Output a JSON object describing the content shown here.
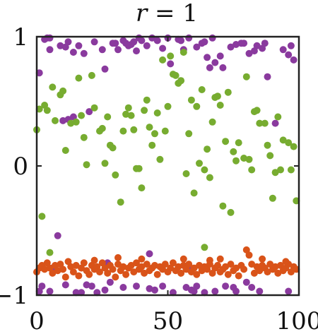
{
  "chart_data": {
    "type": "scatter",
    "title_var": "r",
    "title_rest": " = 1",
    "xlabel": "",
    "ylabel": "",
    "xlim": [
      0,
      100
    ],
    "ylim": [
      -1,
      1
    ],
    "x_ticks": [
      0,
      50,
      100
    ],
    "y_ticks": [
      -1,
      0,
      1
    ],
    "grid": false,
    "legend": "none",
    "series": [
      {
        "color": "#8a3a9e",
        "points": [
          [
            1,
            0.72
          ],
          [
            3,
            0.98
          ],
          [
            4,
            0.99
          ],
          [
            5,
            0.99
          ],
          [
            5,
            0.9
          ],
          [
            9,
            0.93
          ],
          [
            11,
            0.92
          ],
          [
            12,
            0.96
          ],
          [
            14,
            0.88
          ],
          [
            16,
            0.93
          ],
          [
            18,
            0.87
          ],
          [
            22,
            0.96
          ],
          [
            25,
            0.9
          ],
          [
            26,
            0.75
          ],
          [
            29,
            0.95
          ],
          [
            30,
            0.95
          ],
          [
            31,
            0.9
          ],
          [
            33,
            0.97
          ],
          [
            34,
            0.95
          ],
          [
            35,
            0.93
          ],
          [
            36,
            0.94
          ],
          [
            37,
            0.96
          ],
          [
            38,
            0.89
          ],
          [
            39,
            0.99
          ],
          [
            40,
            0.97
          ],
          [
            42,
            0.93
          ],
          [
            44,
            0.99
          ],
          [
            46,
            0.97
          ],
          [
            48,
            0.91
          ],
          [
            50,
            0.99
          ],
          [
            51,
            0.79
          ],
          [
            54,
            0.98
          ],
          [
            55,
            0.97
          ],
          [
            56,
            0.9
          ],
          [
            58,
            0.99
          ],
          [
            61,
            0.92
          ],
          [
            63,
            0.95
          ],
          [
            64,
            0.96
          ],
          [
            65,
            0.84
          ],
          [
            66,
            0.76
          ],
          [
            67,
            0.99
          ],
          [
            68,
            0.8
          ],
          [
            70,
            0.85
          ],
          [
            71,
            0.76
          ],
          [
            74,
            0.92
          ],
          [
            76,
            0.94
          ],
          [
            78,
            0.95
          ],
          [
            79,
            0.95
          ],
          [
            81,
            0.87
          ],
          [
            83,
            0.89
          ],
          [
            84,
            0.93
          ],
          [
            86,
            0.91
          ],
          [
            87,
            0.95
          ],
          [
            88,
            0.69
          ],
          [
            94,
            0.9
          ],
          [
            96,
            0.86
          ],
          [
            97,
            0.93
          ],
          [
            98,
            0.82
          ],
          [
            12,
            0.36
          ],
          [
            20,
            0.42
          ],
          [
            14,
            0.38
          ],
          [
            91,
            0.33
          ],
          [
            10,
            0.35
          ],
          [
            8,
            -0.54
          ],
          [
            43,
            -0.68
          ],
          [
            6,
            -0.79
          ],
          [
            27,
            -0.75
          ],
          [
            58,
            -0.8
          ],
          [
            1,
            -0.97
          ],
          [
            2,
            -0.93
          ],
          [
            5,
            -0.97
          ],
          [
            11,
            -0.92
          ],
          [
            15,
            -0.98
          ],
          [
            17,
            -0.98
          ],
          [
            19,
            -0.92
          ],
          [
            21,
            -0.93
          ],
          [
            23,
            -0.98
          ],
          [
            26,
            -0.96
          ],
          [
            28,
            -0.9
          ],
          [
            33,
            -0.94
          ],
          [
            38,
            -0.93
          ],
          [
            43,
            -0.95
          ],
          [
            45,
            -0.96
          ],
          [
            48,
            -0.93
          ],
          [
            52,
            -0.98
          ],
          [
            57,
            -0.94
          ],
          [
            59,
            -0.96
          ],
          [
            60,
            -0.97
          ],
          [
            61,
            -0.93
          ],
          [
            64,
            -0.98
          ],
          [
            68,
            -0.97
          ],
          [
            72,
            -0.93
          ],
          [
            75,
            -0.94
          ],
          [
            76,
            -0.97
          ],
          [
            80,
            -0.9
          ],
          [
            82,
            -0.94
          ],
          [
            85,
            -0.97
          ],
          [
            96,
            -0.97
          ]
        ]
      },
      {
        "color": "#77ac30",
        "points": [
          [
            0,
            0.28
          ],
          [
            1,
            0.44
          ],
          [
            3,
            0.47
          ],
          [
            4,
            0.43
          ],
          [
            6,
            0.61
          ],
          [
            7,
            0.35
          ],
          [
            9,
            0.55
          ],
          [
            10,
            0.58
          ],
          [
            11,
            0.12
          ],
          [
            13,
            0.33
          ],
          [
            15,
            0.34
          ],
          [
            16,
            0.68
          ],
          [
            17,
            0.39
          ],
          [
            18,
            0.22
          ],
          [
            19,
            0.01
          ],
          [
            21,
            0.7
          ],
          [
            22,
            0.45
          ],
          [
            24,
            0.27
          ],
          [
            25,
            0.29
          ],
          [
            26,
            0.02
          ],
          [
            27,
            0.38
          ],
          [
            28,
            0.16
          ],
          [
            29,
            0.14
          ],
          [
            30,
            -0.07
          ],
          [
            32,
            -0.28
          ],
          [
            33,
            0.27
          ],
          [
            34,
            0.4
          ],
          [
            35,
            0.45
          ],
          [
            36,
            0.39
          ],
          [
            37,
            0.28
          ],
          [
            38,
            -0.02
          ],
          [
            39,
            -0.02
          ],
          [
            40,
            -0.17
          ],
          [
            41,
            0.43
          ],
          [
            42,
            0.51
          ],
          [
            43,
            0.3
          ],
          [
            44,
            0.16
          ],
          [
            45,
            0.25
          ],
          [
            46,
            0.41
          ],
          [
            47,
            0.05
          ],
          [
            48,
            0.82
          ],
          [
            49,
            0.27
          ],
          [
            50,
            0.46
          ],
          [
            51,
            0.85
          ],
          [
            52,
            0.71
          ],
          [
            53,
            0.7
          ],
          [
            54,
            0.64
          ],
          [
            55,
            0.66
          ],
          [
            56,
            0.88
          ],
          [
            57,
            -0.06
          ],
          [
            58,
            0.25
          ],
          [
            59,
            0.51
          ],
          [
            60,
            -0.21
          ],
          [
            61,
            0.46
          ],
          [
            62,
            0.02
          ],
          [
            63,
            0.59
          ],
          [
            64,
            -0.03
          ],
          [
            65,
            0.13
          ],
          [
            66,
            -0.09
          ],
          [
            67,
            0.34
          ],
          [
            68,
            0.53
          ],
          [
            69,
            0.54
          ],
          [
            70,
            0.47
          ],
          [
            71,
            -0.31
          ],
          [
            72,
            0.19
          ],
          [
            73,
            0.57
          ],
          [
            74,
            -0.36
          ],
          [
            75,
            0.11
          ],
          [
            76,
            0.04
          ],
          [
            77,
            0.18
          ],
          [
            79,
            0.06
          ],
          [
            80,
            0.69
          ],
          [
            81,
            0.05
          ],
          [
            82,
            -0.03
          ],
          [
            83,
            0.42
          ],
          [
            84,
            0.43
          ],
          [
            85,
            0.33
          ],
          [
            87,
            0.33
          ],
          [
            88,
            0.16
          ],
          [
            89,
            0.08
          ],
          [
            90,
            -0.25
          ],
          [
            91,
            -0.05
          ],
          [
            92,
            0.38
          ],
          [
            93,
            -0.03
          ],
          [
            94,
            0.2
          ],
          [
            96,
            0.18
          ],
          [
            97,
            -0.03
          ],
          [
            98,
            0.15
          ],
          [
            99,
            -0.27
          ],
          [
            2,
            -0.39
          ],
          [
            5,
            -0.67
          ],
          [
            64,
            -0.63
          ]
        ]
      },
      {
        "color": "#d95319",
        "points": [
          [
            0,
            -0.82
          ],
          [
            1,
            -0.79
          ],
          [
            2,
            -0.77
          ],
          [
            3,
            -0.8
          ],
          [
            4,
            -0.75
          ],
          [
            5,
            -0.79
          ],
          [
            6,
            -0.83
          ],
          [
            7,
            -0.77
          ],
          [
            8,
            -0.81
          ],
          [
            9,
            -0.76
          ],
          [
            10,
            -0.8
          ],
          [
            11,
            -0.86
          ],
          [
            12,
            -0.74
          ],
          [
            13,
            -0.78
          ],
          [
            14,
            -0.82
          ],
          [
            15,
            -0.77
          ],
          [
            16,
            -0.85
          ],
          [
            17,
            -0.79
          ],
          [
            18,
            -0.75
          ],
          [
            19,
            -0.81
          ],
          [
            20,
            -0.84
          ],
          [
            21,
            -0.77
          ],
          [
            22,
            -0.8
          ],
          [
            23,
            -0.78
          ],
          [
            24,
            -0.82
          ],
          [
            25,
            -0.75
          ],
          [
            26,
            -0.79
          ],
          [
            27,
            -0.83
          ],
          [
            28,
            -0.77
          ],
          [
            29,
            -0.8
          ],
          [
            30,
            -0.86
          ],
          [
            31,
            -0.76
          ],
          [
            32,
            -0.81
          ],
          [
            33,
            -0.78
          ],
          [
            34,
            -0.84
          ],
          [
            35,
            -0.79
          ],
          [
            36,
            -0.77
          ],
          [
            37,
            -0.82
          ],
          [
            38,
            -0.75
          ],
          [
            39,
            -0.8
          ],
          [
            40,
            -0.78
          ],
          [
            41,
            -0.83
          ],
          [
            42,
            -0.76
          ],
          [
            43,
            -0.81
          ],
          [
            44,
            -0.79
          ],
          [
            45,
            -0.77
          ],
          [
            46,
            -0.84
          ],
          [
            47,
            -0.78
          ],
          [
            48,
            -0.8
          ],
          [
            49,
            -0.76
          ],
          [
            50,
            -0.82
          ],
          [
            51,
            -0.79
          ],
          [
            52,
            -0.75
          ],
          [
            53,
            -0.81
          ],
          [
            54,
            -0.78
          ],
          [
            55,
            -0.83
          ],
          [
            56,
            -0.77
          ],
          [
            57,
            -0.8
          ],
          [
            58,
            -0.76
          ],
          [
            59,
            -0.82
          ],
          [
            60,
            -0.79
          ],
          [
            61,
            -0.84
          ],
          [
            62,
            -0.77
          ],
          [
            63,
            -0.81
          ],
          [
            64,
            -0.78
          ],
          [
            65,
            -0.8
          ],
          [
            66,
            -0.76
          ],
          [
            67,
            -0.83
          ],
          [
            68,
            -0.79
          ],
          [
            69,
            -0.77
          ],
          [
            70,
            -0.82
          ],
          [
            71,
            -0.8
          ],
          [
            72,
            -0.78
          ],
          [
            73,
            -0.84
          ],
          [
            74,
            -0.76
          ],
          [
            75,
            -0.81
          ],
          [
            76,
            -0.79
          ],
          [
            77,
            -0.85
          ],
          [
            78,
            -0.77
          ],
          [
            79,
            -0.8
          ],
          [
            80,
            -0.65
          ],
          [
            81,
            -0.69
          ],
          [
            82,
            -0.76
          ],
          [
            83,
            -0.83
          ],
          [
            84,
            -0.78
          ],
          [
            85,
            -0.81
          ],
          [
            86,
            -0.77
          ],
          [
            87,
            -0.79
          ],
          [
            88,
            -0.82
          ],
          [
            89,
            -0.76
          ],
          [
            90,
            -0.8
          ],
          [
            91,
            -0.78
          ],
          [
            92,
            -0.83
          ],
          [
            93,
            -0.77
          ],
          [
            94,
            -0.81
          ],
          [
            95,
            -0.79
          ],
          [
            96,
            -0.76
          ],
          [
            97,
            -0.82
          ],
          [
            98,
            -0.78
          ],
          [
            99,
            -0.8
          ],
          [
            22,
            -0.73
          ],
          [
            31,
            -0.71
          ],
          [
            40,
            -0.72
          ],
          [
            56,
            -0.72
          ],
          [
            66,
            -0.73
          ],
          [
            70,
            -0.72
          ],
          [
            86,
            -0.72
          ],
          [
            95,
            -0.74
          ]
        ]
      }
    ]
  }
}
